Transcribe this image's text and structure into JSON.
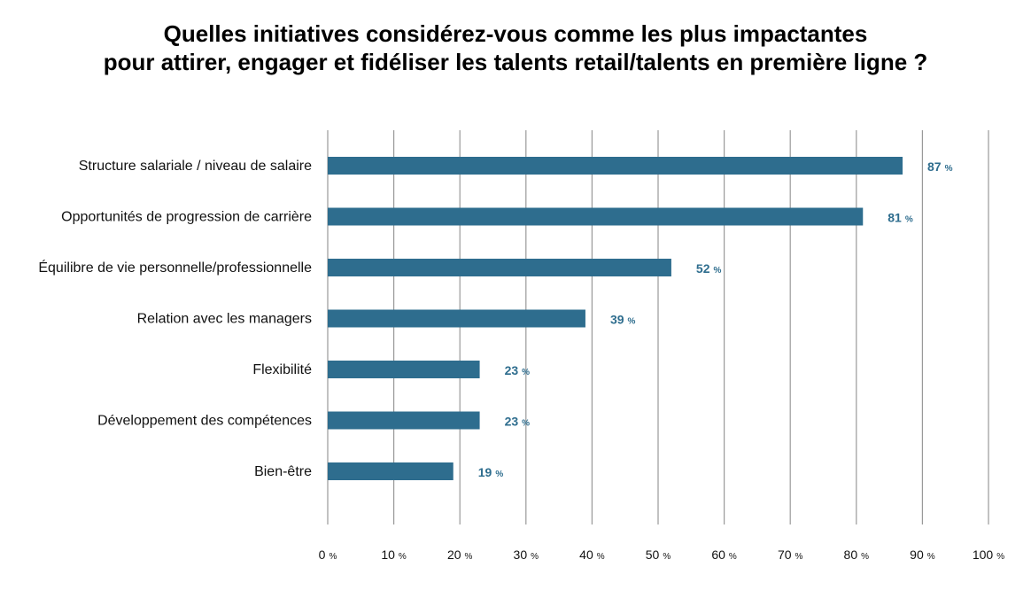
{
  "title": {
    "line1": "Quelles initiatives considérez-vous comme les plus impactantes",
    "line2": "pour attirer, engager et fidéliser les talents retail/talents en première ligne ?"
  },
  "colors": {
    "bar": "#2e6d8e",
    "value_label": "#2e6d8e",
    "grid": "#999999"
  },
  "chart_data": {
    "type": "bar",
    "orientation": "horizontal",
    "categories": [
      "Structure salariale / niveau de salaire",
      "Opportunités de progression de carrière",
      "Équilibre de vie personnelle/professionnelle",
      "Relation avec les managers",
      "Flexibilité",
      "Développement des compétences",
      "Bien-être"
    ],
    "values": [
      87,
      81,
      52,
      39,
      23,
      23,
      19
    ],
    "unit": "%",
    "xlim": [
      0,
      100
    ],
    "xticks": [
      0,
      10,
      20,
      30,
      40,
      50,
      60,
      70,
      80,
      90,
      100
    ],
    "grid": true,
    "legend": false
  }
}
